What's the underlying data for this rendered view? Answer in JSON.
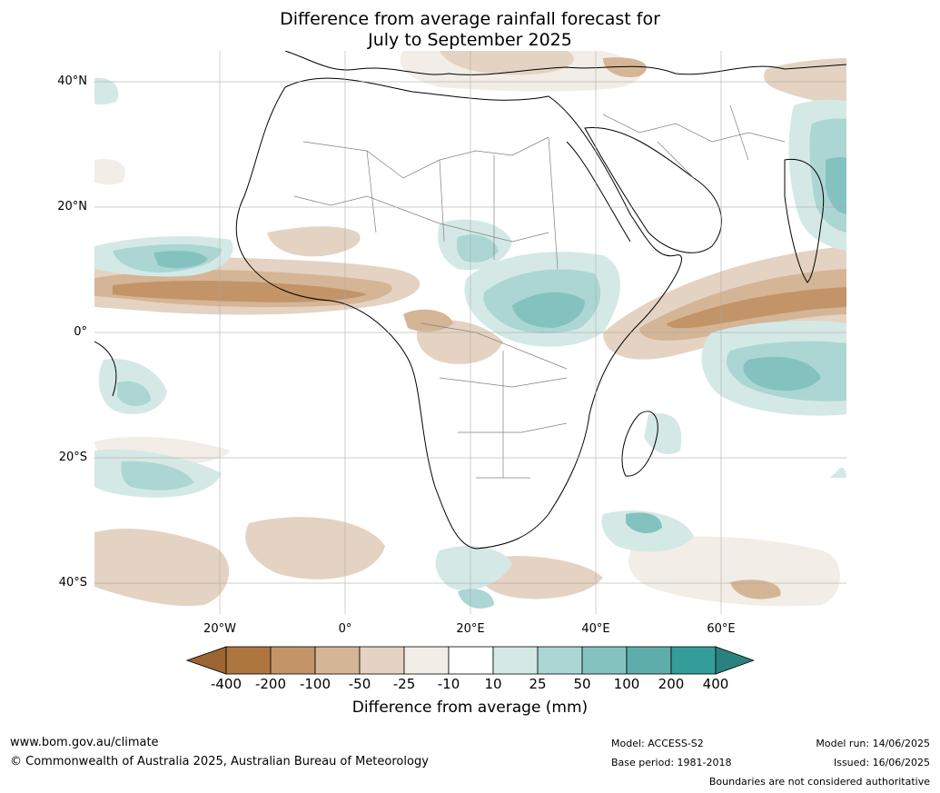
{
  "title_line1": "Difference from average rainfall forecast for",
  "title_line2": "July to September 2025",
  "lat_labels": [
    "40°N",
    "20°N",
    "0°",
    "20°S",
    "40°S"
  ],
  "lon_labels": [
    "20°W",
    "0°",
    "20°E",
    "40°E",
    "60°E"
  ],
  "legend": {
    "ticks": [
      "-400",
      "-200",
      "-100",
      "-50",
      "-25",
      "-10",
      "10",
      "25",
      "50",
      "100",
      "200",
      "400"
    ],
    "label": "Difference from average (mm)",
    "colors": [
      "#9c6532",
      "#ad763f",
      "#c29467",
      "#d4b596",
      "#e4d3c2",
      "#f2ede6",
      "#ffffff",
      "#d4e9e6",
      "#abd6d3",
      "#84c2c0",
      "#5eadab",
      "#349d99",
      "#2a817e"
    ]
  },
  "footer": {
    "website": "www.bom.gov.au/climate",
    "copyright": "© Commonwealth of Australia 2025, Australian Bureau of Meteorology",
    "model": "Model: ACCESS-S2",
    "base_period": "Base period: 1981-2018",
    "model_run": "Model run: 14/06/2025",
    "issued": "Issued: 16/06/2025",
    "disclaimer": "Boundaries are not considered authoritative"
  }
}
